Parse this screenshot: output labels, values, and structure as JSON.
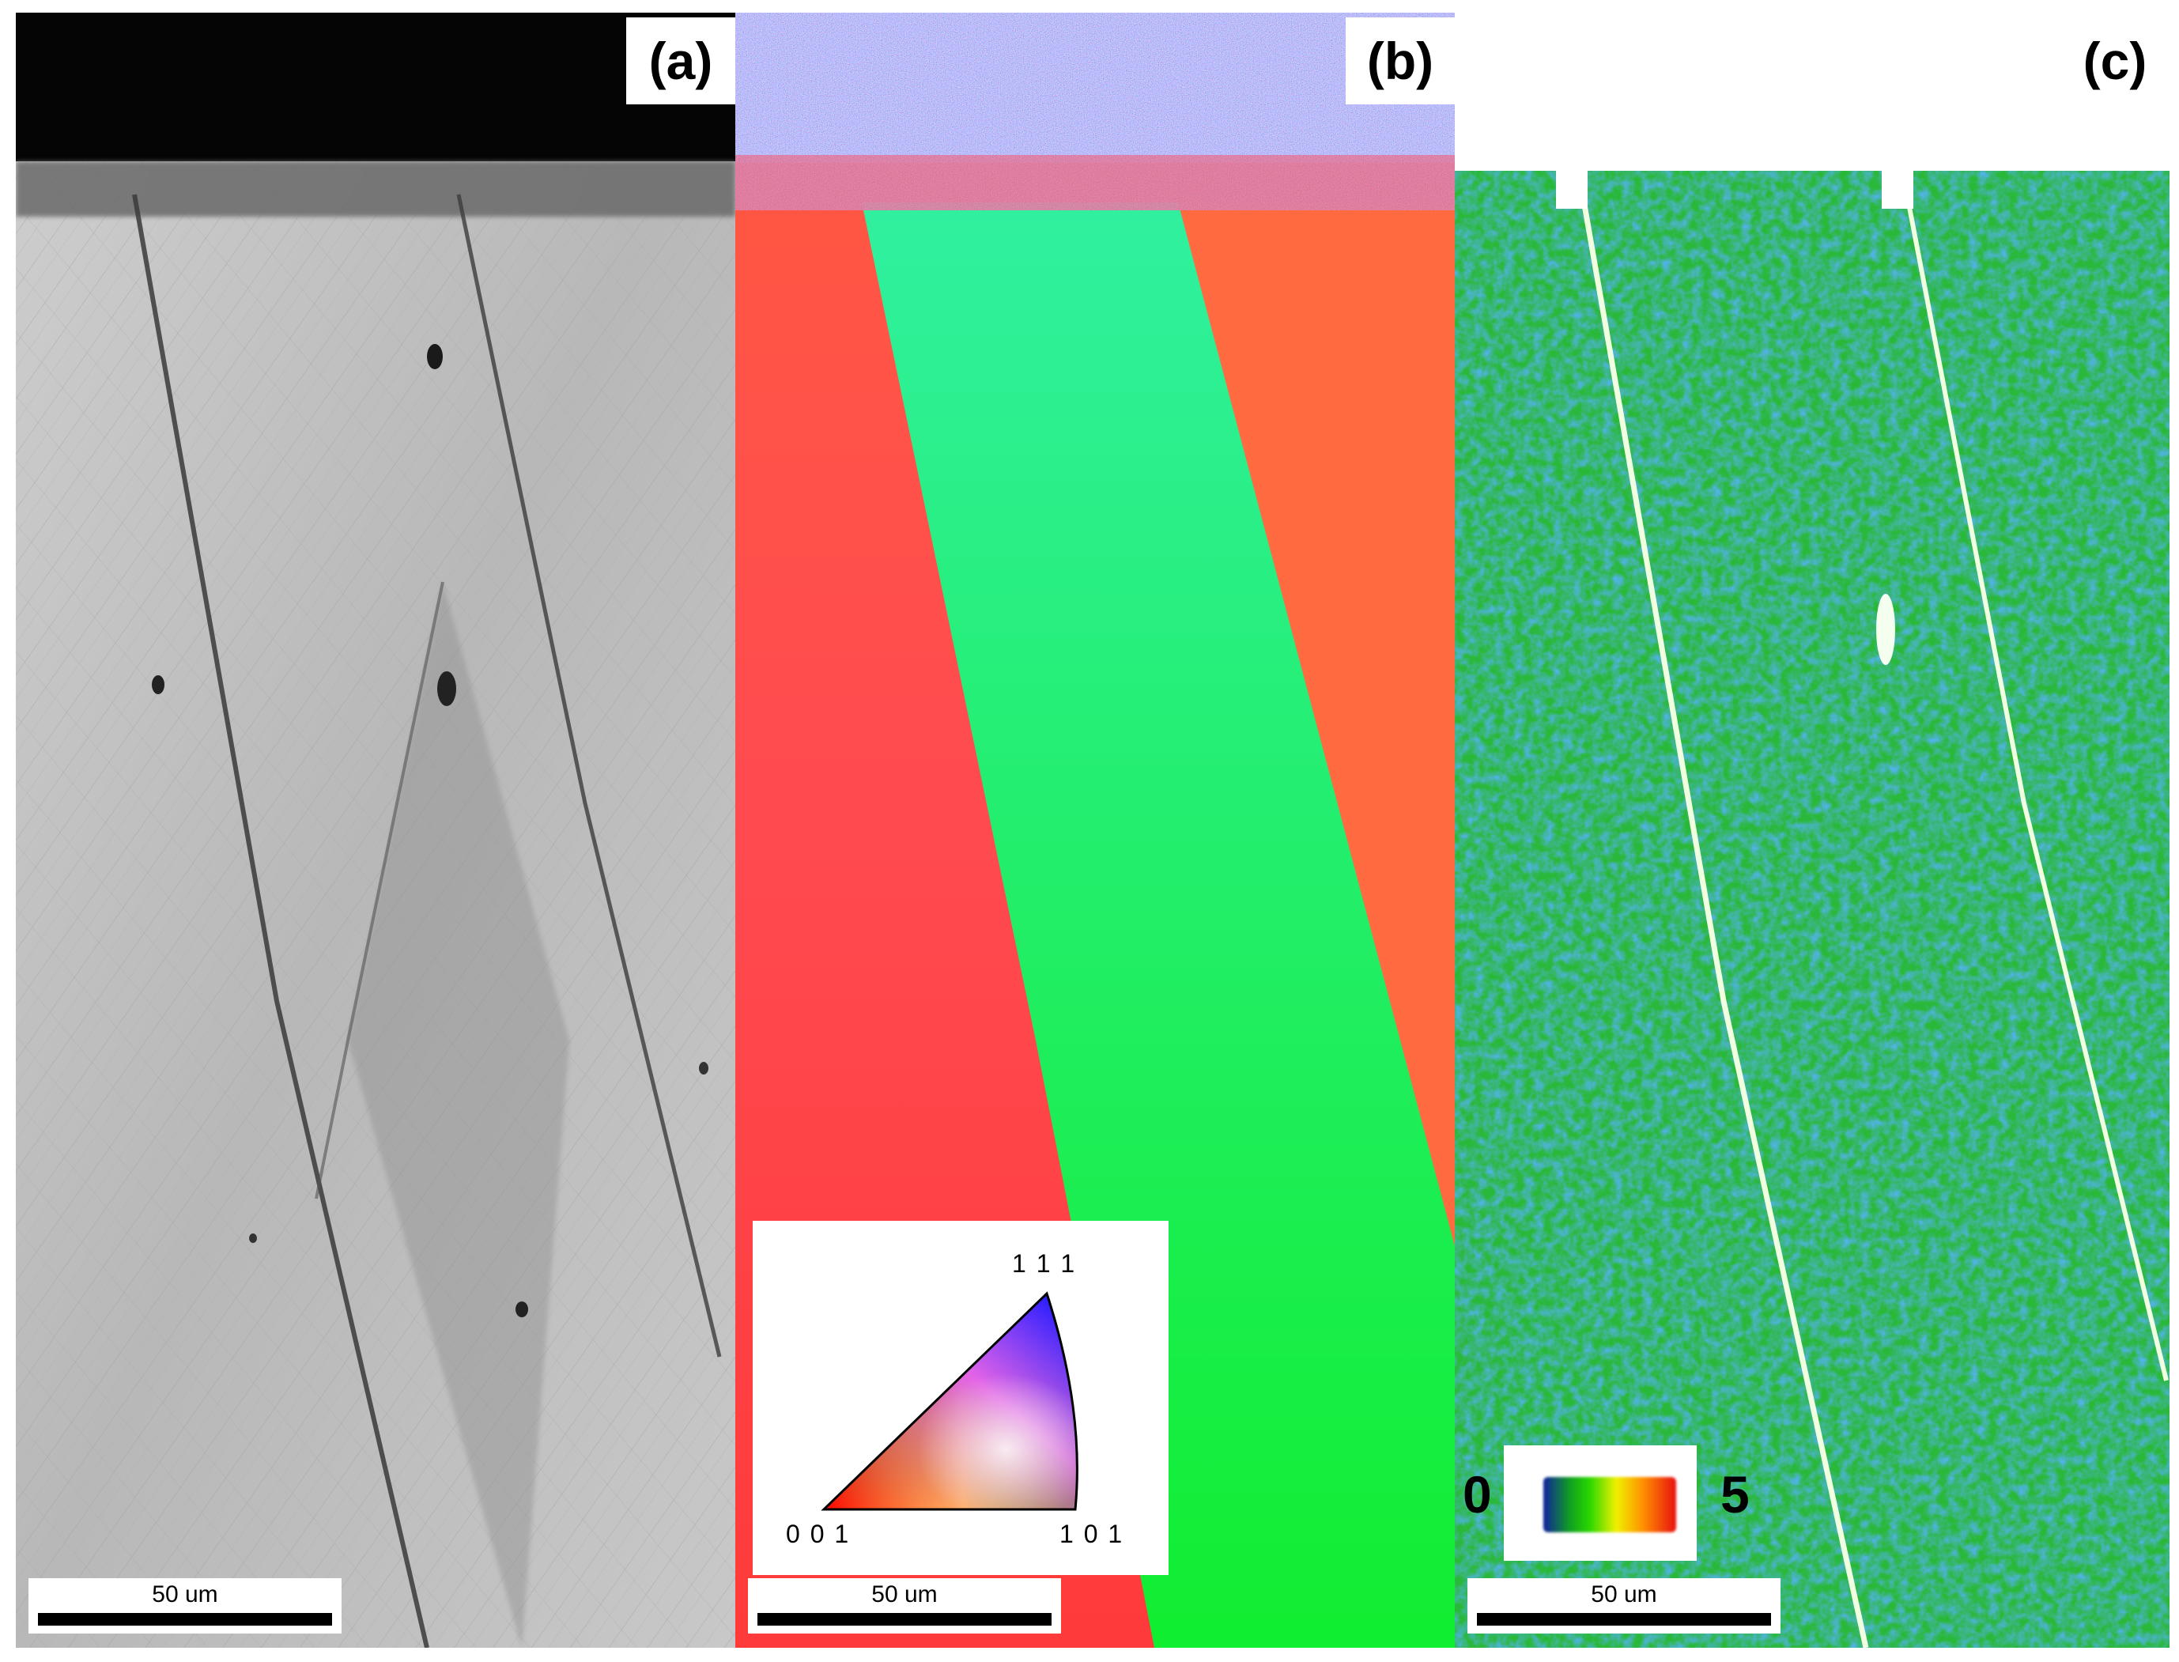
{
  "figure": {
    "panels": [
      {
        "id": "a",
        "label": "(a)",
        "scale_bar": "50 um"
      },
      {
        "id": "b",
        "label": "(b)",
        "scale_bar": "50 um",
        "ipf_legend": {
          "corner_111": "1 1 1",
          "corner_001": "0 0 1",
          "corner_101": "1 0 1"
        }
      },
      {
        "id": "c",
        "label": "(c)",
        "scale_bar": "50 um",
        "kam_legend": {
          "min": "0",
          "max": "5"
        }
      }
    ]
  },
  "colors": {
    "ebsd_red_grain": "#ff4a3a",
    "ebsd_green_grain": "#28f060",
    "kam_blue": "#1560b8",
    "kam_green": "#30d030",
    "sem_gray": "#bdbdbd"
  }
}
